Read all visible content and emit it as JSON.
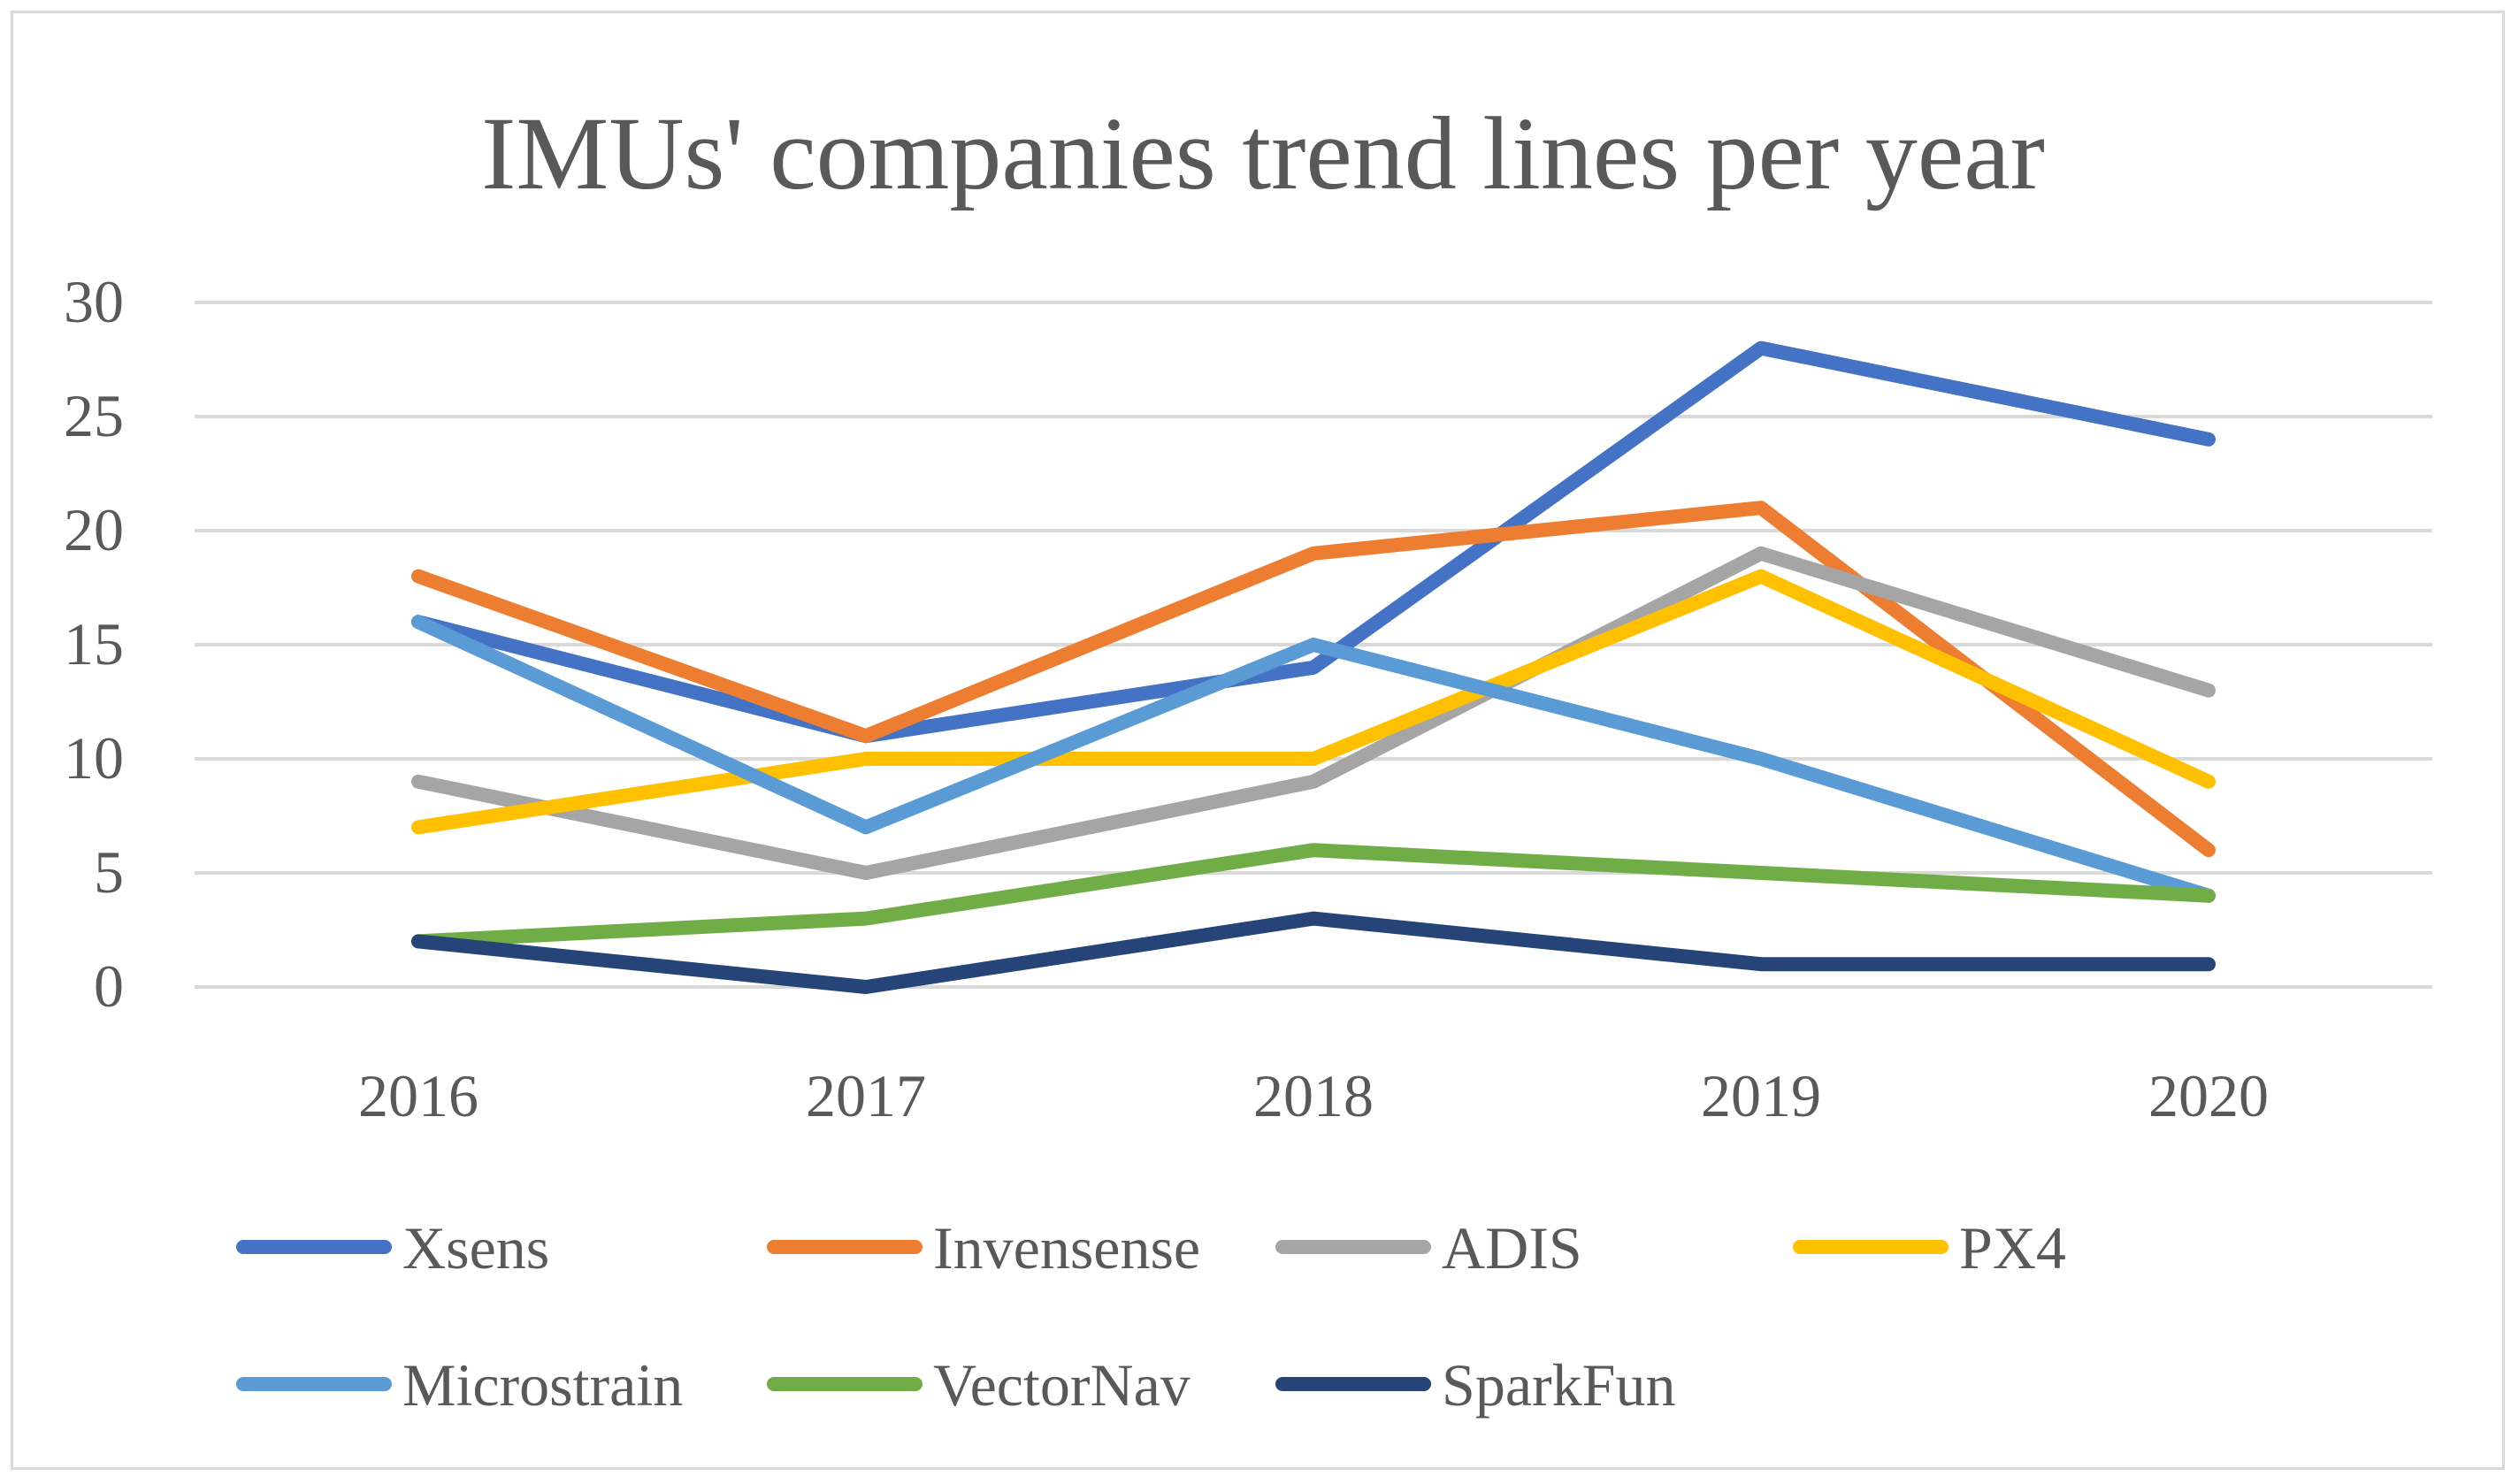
{
  "chart_data": {
    "type": "line",
    "title": "IMUs' companies trend lines per year",
    "categories": [
      "2016",
      "2017",
      "2018",
      "2019",
      "2020"
    ],
    "ylim": [
      0,
      30
    ],
    "yticks": [
      0,
      5,
      10,
      15,
      20,
      25,
      30
    ],
    "grid": true,
    "legend_position": "bottom",
    "series": [
      {
        "name": "Xsens",
        "color": "#4472c4",
        "values": [
          16,
          11,
          14,
          28,
          24
        ]
      },
      {
        "name": "Invensense",
        "color": "#ed7d31",
        "values": [
          18,
          11,
          19,
          21,
          6
        ]
      },
      {
        "name": "ADIS",
        "color": "#a5a5a5",
        "values": [
          9,
          5,
          9,
          19,
          13
        ]
      },
      {
        "name": "PX4",
        "color": "#ffc000",
        "values": [
          7,
          10,
          10,
          18,
          9
        ]
      },
      {
        "name": "Microstrain",
        "color": "#5b9bd5",
        "values": [
          16,
          7,
          15,
          10,
          4
        ]
      },
      {
        "name": "VectorNav",
        "color": "#70ad47",
        "values": [
          2,
          3,
          6,
          5,
          4
        ]
      },
      {
        "name": "SparkFun",
        "color": "#264478",
        "values": [
          2,
          0,
          3,
          1,
          1
        ]
      }
    ]
  }
}
